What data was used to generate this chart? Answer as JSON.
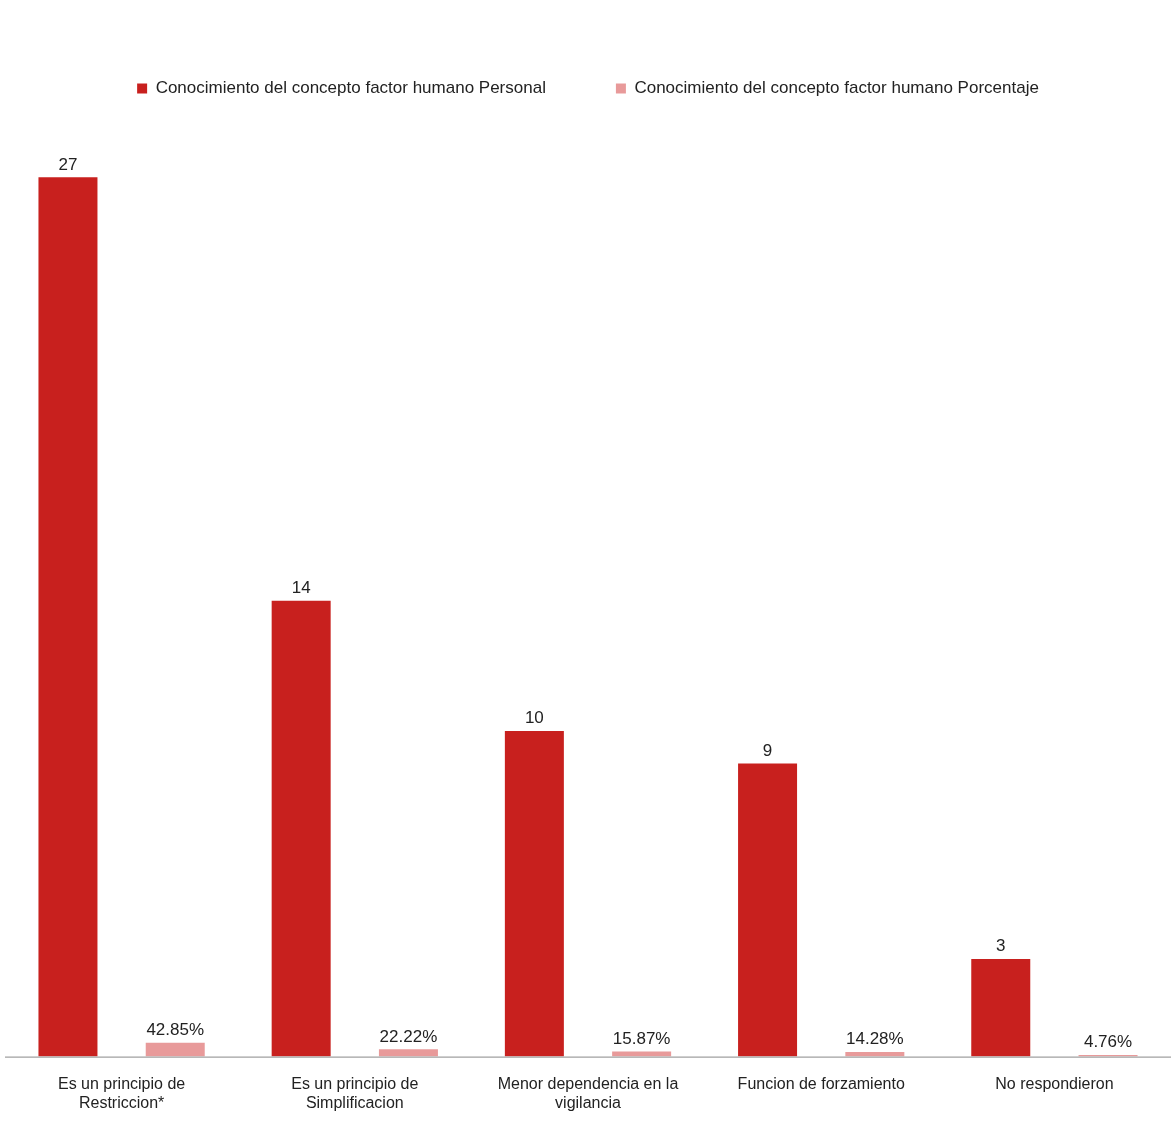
{
  "chart_data": {
    "type": "bar",
    "categories": [
      "Es un principio de Restriccion*",
      "Es un principio de Simplificacion",
      "Menor dependencia en la vigilancia",
      "Funcion de forzamiento",
      "No respondieron"
    ],
    "series": [
      {
        "name": "Conocimiento del concepto factor humano Personal",
        "color": "#c8201e",
        "values": [
          27,
          14,
          10,
          9,
          3
        ],
        "value_labels": [
          "27",
          "14",
          "10",
          "9",
          "3"
        ]
      },
      {
        "name": "Conocimiento del concepto factor humano Porcentaje",
        "color": "#e89a9a",
        "axis": "y2",
        "values": [
          42.85,
          22.22,
          15.87,
          14.28,
          4.76
        ],
        "value_labels": [
          "42.85%",
          "22.22%",
          "15.87%",
          "14.28%",
          "4.76%"
        ]
      }
    ],
    "legend": "top",
    "tick_labels": "x",
    "grid": false
  }
}
